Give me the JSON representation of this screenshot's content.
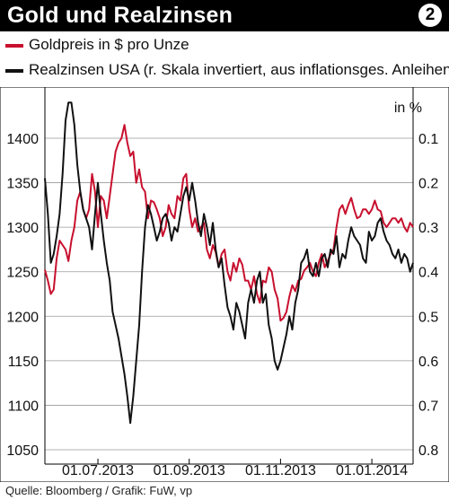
{
  "header": {
    "title": "Gold und Realzinsen",
    "badge": "2"
  },
  "legend": [
    {
      "label": "Goldpreis in $ pro Unze",
      "color": "#c8102e"
    },
    {
      "label": "Realzinsen USA (r. Skala invertiert, aus inflationsges. Anleihen)",
      "color": "#111111"
    }
  ],
  "footer": {
    "source": "Quelle: Bloomberg / Grafik: FuW, vp"
  },
  "chart_data": {
    "type": "line",
    "right_axis_unit": "in %",
    "left_axis": {
      "min": 1050,
      "max": 1450,
      "ticks": [
        "1400",
        "1350",
        "1300",
        "1250",
        "1200",
        "1150",
        "1100",
        "1050"
      ]
    },
    "right_axis": {
      "inverted": true,
      "min": 0.0,
      "max": 0.8,
      "ticks": [
        "0.1",
        "0.2",
        "0.3",
        "0.4",
        "0.5",
        "0.6",
        "0.7",
        "0.8"
      ]
    },
    "x_axis": {
      "labels": [
        "01.07.2013",
        "01.09.2013",
        "01.11.2013",
        "01.01.2014"
      ],
      "start_date": "2013-05-28",
      "end_date": "2014-02-03"
    },
    "grid": "horizontal",
    "series": [
      {
        "name": "Goldpreis in $ pro Unze",
        "axis": "left",
        "color": "#c8102e",
        "x": [
          0,
          2,
          4,
          6,
          8,
          10,
          12,
          14,
          16,
          18,
          20,
          22,
          24,
          26,
          28,
          30,
          32,
          34,
          36,
          38,
          40,
          42,
          44,
          46,
          48,
          50,
          52,
          54,
          56,
          58,
          60,
          62,
          64,
          66,
          68,
          70,
          72,
          74,
          76,
          78,
          80,
          82,
          84,
          86,
          88,
          90,
          92,
          94,
          96,
          98,
          100,
          102,
          104,
          106,
          108,
          110,
          112,
          114,
          116,
          118,
          120,
          122,
          124,
          126,
          128,
          130,
          132,
          134,
          136,
          138,
          140,
          142,
          144,
          146,
          148,
          150,
          152,
          154,
          156,
          158,
          160,
          162,
          164,
          166,
          168,
          170,
          172,
          174,
          176,
          178,
          180,
          182,
          184,
          186,
          188,
          190,
          192,
          194,
          196,
          198,
          200,
          202,
          204,
          206,
          208,
          210,
          212,
          214,
          216,
          218,
          220,
          222,
          224,
          226,
          228,
          230,
          232,
          234,
          236,
          238,
          240,
          242,
          244,
          246,
          248,
          250
        ],
        "values": [
          1252,
          1240,
          1225,
          1230,
          1265,
          1285,
          1280,
          1275,
          1262,
          1285,
          1300,
          1330,
          1340,
          1320,
          1310,
          1320,
          1360,
          1340,
          1300,
          1335,
          1330,
          1310,
          1335,
          1360,
          1385,
          1395,
          1400,
          1415,
          1395,
          1380,
          1385,
          1350,
          1365,
          1345,
          1340,
          1310,
          1330,
          1328,
          1320,
          1310,
          1290,
          1300,
          1325,
          1315,
          1310,
          1335,
          1330,
          1355,
          1360,
          1320,
          1300,
          1310,
          1295,
          1300,
          1305,
          1275,
          1265,
          1280,
          1272,
          1255,
          1270,
          1275,
          1250,
          1240,
          1260,
          1250,
          1265,
          1258,
          1240,
          1240,
          1230,
          1245,
          1225,
          1215,
          1240,
          1238,
          1255,
          1250,
          1230,
          1220,
          1195,
          1198,
          1205,
          1222,
          1235,
          1228,
          1240,
          1242,
          1251,
          1255,
          1260,
          1250,
          1245,
          1260,
          1270,
          1255,
          1262,
          1270,
          1275,
          1300,
          1320,
          1325,
          1315,
          1325,
          1333,
          1320,
          1310,
          1312,
          1320,
          1320,
          1315,
          1320,
          1330,
          1320,
          1318,
          1305,
          1300,
          1305,
          1310,
          1310,
          1305,
          1310,
          1300,
          1295,
          1305,
          1300
        ]
      },
      {
        "name": "Realzinsen USA (r. Skala invertiert, aus inflationsges. Anleihen)",
        "axis": "right",
        "color": "#111111",
        "x": [
          0,
          2,
          4,
          6,
          8,
          10,
          12,
          14,
          16,
          18,
          20,
          22,
          24,
          26,
          28,
          30,
          32,
          34,
          36,
          38,
          40,
          42,
          44,
          46,
          48,
          50,
          52,
          54,
          56,
          58,
          60,
          62,
          64,
          66,
          68,
          70,
          72,
          74,
          76,
          78,
          80,
          82,
          84,
          86,
          88,
          90,
          92,
          94,
          96,
          98,
          100,
          102,
          104,
          106,
          108,
          110,
          112,
          114,
          116,
          118,
          120,
          122,
          124,
          126,
          128,
          130,
          132,
          134,
          136,
          138,
          140,
          142,
          144,
          146,
          148,
          150,
          152,
          154,
          156,
          158,
          160,
          162,
          164,
          166,
          168,
          170,
          172,
          174,
          176,
          178,
          180,
          182,
          184,
          186,
          188,
          190,
          192,
          194,
          196,
          198,
          200,
          202,
          204,
          206,
          208,
          210,
          212,
          214,
          216,
          218,
          220,
          222,
          224,
          226,
          228,
          230,
          232,
          234,
          236,
          238,
          240,
          242,
          244,
          246,
          248,
          250
        ],
        "values": [
          0.19,
          0.27,
          0.38,
          0.36,
          0.32,
          0.27,
          0.18,
          0.06,
          0.02,
          0.02,
          0.07,
          0.16,
          0.22,
          0.26,
          0.28,
          0.3,
          0.35,
          0.27,
          0.2,
          0.27,
          0.33,
          0.38,
          0.42,
          0.49,
          0.52,
          0.55,
          0.59,
          0.63,
          0.68,
          0.74,
          0.68,
          0.6,
          0.52,
          0.4,
          0.3,
          0.25,
          0.27,
          0.3,
          0.33,
          0.31,
          0.28,
          0.27,
          0.29,
          0.33,
          0.3,
          0.31,
          0.27,
          0.23,
          0.21,
          0.24,
          0.2,
          0.24,
          0.29,
          0.32,
          0.27,
          0.3,
          0.34,
          0.29,
          0.35,
          0.39,
          0.37,
          0.43,
          0.48,
          0.5,
          0.53,
          0.47,
          0.49,
          0.52,
          0.55,
          0.47,
          0.44,
          0.47,
          0.42,
          0.4,
          0.47,
          0.45,
          0.52,
          0.55,
          0.6,
          0.62,
          0.6,
          0.57,
          0.54,
          0.5,
          0.53,
          0.47,
          0.44,
          0.38,
          0.37,
          0.35,
          0.4,
          0.41,
          0.38,
          0.41,
          0.37,
          0.36,
          0.39,
          0.35,
          0.36,
          0.32,
          0.39,
          0.36,
          0.37,
          0.33,
          0.3,
          0.32,
          0.33,
          0.34,
          0.37,
          0.38,
          0.31,
          0.33,
          0.32,
          0.29,
          0.28,
          0.31,
          0.33,
          0.34,
          0.36,
          0.37,
          0.35,
          0.38,
          0.36,
          0.37,
          0.4,
          0.38
        ]
      }
    ]
  }
}
